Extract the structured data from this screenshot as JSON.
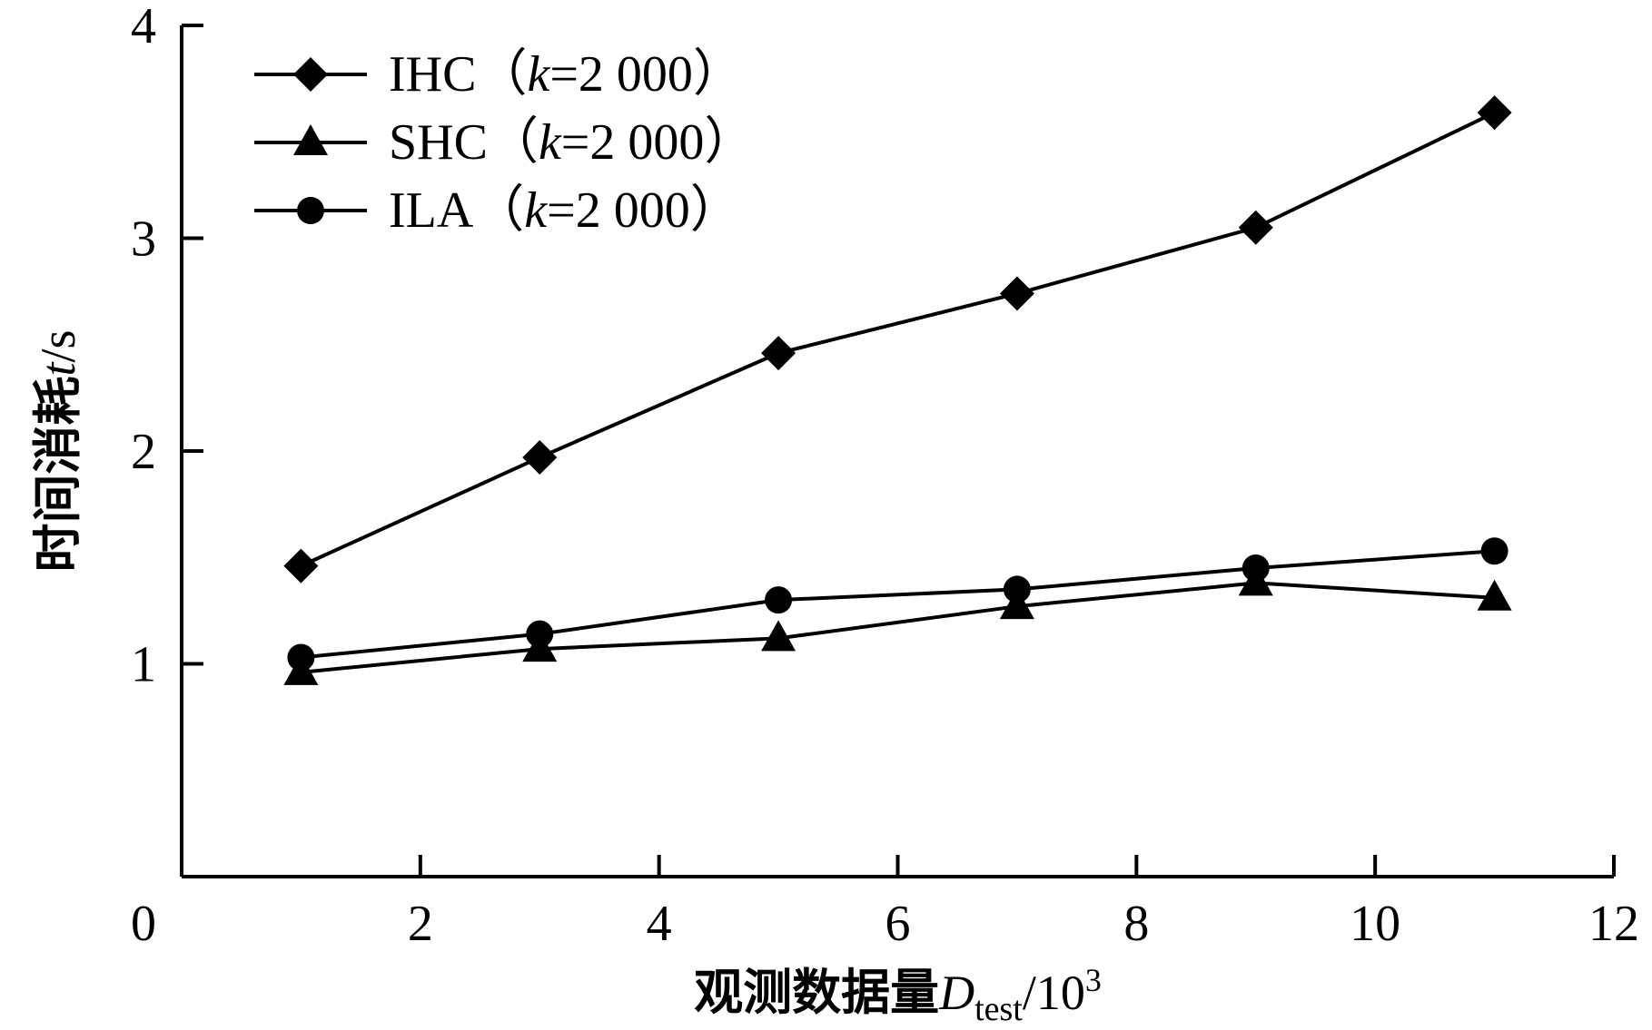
{
  "chart_data": {
    "type": "line",
    "x": [
      1,
      3,
      5,
      7,
      9,
      11
    ],
    "series": [
      {
        "name": "IHC（k=2 000）",
        "name_parts": [
          "IHC（",
          "k",
          "=2  000）"
        ],
        "marker": "diamond",
        "values": [
          1.46,
          1.97,
          2.46,
          2.74,
          3.05,
          3.59
        ]
      },
      {
        "name": "SHC（k=2 000）",
        "name_parts": [
          "SHC（",
          "k",
          "=2  000）"
        ],
        "marker": "triangle",
        "values": [
          0.96,
          1.07,
          1.12,
          1.27,
          1.38,
          1.31
        ]
      },
      {
        "name": "ILA（k=2 000）",
        "name_parts": [
          "ILA（",
          "k",
          "=2  000）"
        ],
        "marker": "circle",
        "values": [
          1.03,
          1.14,
          1.3,
          1.35,
          1.45,
          1.53
        ]
      }
    ],
    "xlim": [
      0,
      12
    ],
    "ylim": [
      0,
      4
    ],
    "xticks": [
      0,
      2,
      4,
      6,
      8,
      10,
      12
    ],
    "yticks": [
      1,
      2,
      3,
      4
    ],
    "xticklabels": [
      "0",
      "2",
      "4",
      "6",
      "8",
      "10",
      "12"
    ],
    "yticklabels": [
      "1",
      "2",
      "3",
      "4"
    ],
    "xlabel": {
      "full": "观测数据量Dtest/10³",
      "cjk": "观测数据量",
      "var": "D",
      "sub": "test",
      "unit": "/10",
      "sup": "3"
    },
    "ylabel": {
      "full": "时间消耗t/s",
      "cjk": "时间消耗",
      "var": "t",
      "unit": "/s"
    },
    "legend_position": "top-left",
    "grid": false,
    "line_color": "#000000"
  }
}
